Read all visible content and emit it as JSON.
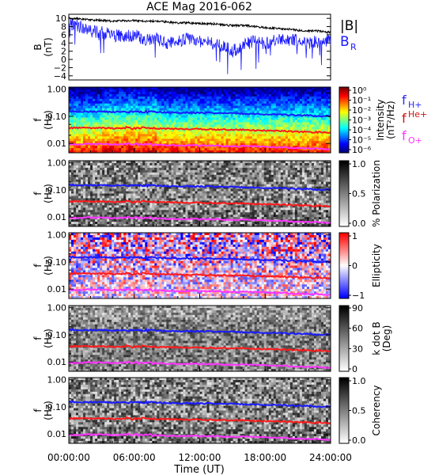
{
  "title": "ACE Mag 2016-062",
  "time_axis": {
    "label": "Time (UT)",
    "ticks": [
      "00:00:00",
      "06:00:00",
      "12:00:00",
      "18:00:00",
      "24:00:00"
    ],
    "range_hours": [
      0,
      24
    ]
  },
  "legend_top": {
    "b_total": "|B|",
    "b_r_main": "B",
    "b_r_sub": "R"
  },
  "legend_freq": [
    {
      "main": "f",
      "sub": "H+",
      "sup": "",
      "color": "#2a2aff"
    },
    {
      "main": "f",
      "sub": "",
      "sup": "He+",
      "color": "#cc1111"
    },
    {
      "main": "f",
      "sub": "O+",
      "sup": "",
      "color": "#ff33ff"
    }
  ],
  "colors": {
    "b_total": "#000000",
    "b_r": "#1a1aff",
    "f_h": "#1a1aff",
    "f_he": "#ff1a1a",
    "f_o": "#ff33ff"
  },
  "chart_data": [
    {
      "type": "line",
      "panel": "B",
      "ylabel_main": "B",
      "ylabel_unit": "(nT)",
      "ylim": [
        -5,
        11
      ],
      "yticks": [
        -4,
        -2,
        0,
        2,
        4,
        6,
        8,
        10
      ],
      "x_hours": [
        0,
        1,
        2,
        3,
        4,
        5,
        6,
        7,
        8,
        9,
        10,
        11,
        12,
        13,
        14,
        15,
        16,
        17,
        18,
        19,
        20,
        21,
        22,
        23,
        24
      ],
      "series": [
        {
          "key": "btotal",
          "values": [
            10.0,
            9.9,
            9.6,
            9.5,
            9.3,
            9.4,
            9.5,
            9.3,
            9.3,
            9.1,
            8.9,
            8.9,
            8.8,
            8.7,
            8.5,
            8.2,
            8.3,
            8.0,
            7.7,
            7.6,
            7.4,
            7.1,
            7.0,
            6.9,
            6.6
          ]
        },
        {
          "key": "br",
          "values": [
            8.5,
            8.0,
            7.0,
            6.5,
            6.0,
            5.5,
            6.0,
            4.5,
            5.0,
            4.0,
            4.5,
            5.0,
            4.5,
            4.0,
            3.5,
            2.0,
            3.5,
            4.5,
            4.0,
            4.5,
            5.0,
            4.5,
            4.0,
            4.5,
            5.0
          ]
        }
      ]
    },
    {
      "type": "heatmap",
      "panel": "intensity",
      "ylabel_main": "f",
      "ylabel_unit": "(Hz)",
      "ylim": [
        0.0045,
        1.2
      ],
      "yscale": "log",
      "yticks": [
        "1.00",
        "0.10",
        "0.01"
      ],
      "colorbar": {
        "label_main": "Intensity",
        "label_unit": "(nT²/Hz)",
        "ticks": [
          "10⁰",
          "10⁻¹",
          "10⁻²",
          "10⁻³",
          "10⁻⁴",
          "10⁻⁵",
          "10⁻⁶"
        ]
      }
    },
    {
      "type": "heatmap",
      "panel": "polarization",
      "ylabel_main": "f",
      "ylabel_unit": "(Hz)",
      "yscale": "log",
      "yticks": [
        "1.00",
        "0.10",
        "0.01"
      ],
      "colorbar": {
        "label_main": "% Polarization",
        "label_unit": "",
        "ticks": [
          "1.0",
          "0.5",
          "0.0"
        ]
      }
    },
    {
      "type": "heatmap",
      "panel": "ellipticity",
      "ylabel_main": "f",
      "ylabel_unit": "(Hz)",
      "yscale": "log",
      "yticks": [
        "1.00",
        "0.10",
        "0.01"
      ],
      "colorbar": {
        "label_main": "Ellipticity",
        "label_unit": "",
        "ticks": [
          "1",
          "0",
          "−1"
        ]
      }
    },
    {
      "type": "heatmap",
      "panel": "kdotb",
      "ylabel_main": "f",
      "ylabel_unit": "(Hz)",
      "yscale": "log",
      "yticks": [
        "1.00",
        "0.10",
        "0.01"
      ],
      "colorbar": {
        "label_main": "k dot B",
        "label_unit": "(Deg)",
        "ticks": [
          "90",
          "60",
          "30",
          "0"
        ]
      }
    },
    {
      "type": "heatmap",
      "panel": "coherency",
      "ylabel_main": "f",
      "ylabel_unit": "(Hz)",
      "yscale": "log",
      "yticks": [
        "1.00",
        "0.10",
        "0.01"
      ],
      "colorbar": {
        "label_main": "Coherency",
        "label_unit": "",
        "ticks": [
          "1.0",
          "0.5",
          "0.0"
        ]
      }
    },
    {
      "type": "line",
      "panel": "gyrofrequencies",
      "x_hours": [
        0,
        2,
        4,
        6,
        8,
        10,
        12,
        14,
        16,
        18,
        20,
        22,
        24
      ],
      "series": [
        {
          "key": "f_h",
          "values": [
            0.152,
            0.15,
            0.146,
            0.145,
            0.142,
            0.138,
            0.135,
            0.13,
            0.126,
            0.118,
            0.112,
            0.106,
            0.1
          ]
        },
        {
          "key": "f_he",
          "values": [
            0.038,
            0.0375,
            0.0365,
            0.0362,
            0.0355,
            0.0345,
            0.0338,
            0.0325,
            0.0315,
            0.0295,
            0.028,
            0.0265,
            0.025
          ]
        },
        {
          "key": "f_o",
          "values": [
            0.0095,
            0.0094,
            0.0091,
            0.0091,
            0.0089,
            0.0086,
            0.0084,
            0.0081,
            0.0079,
            0.0074,
            0.007,
            0.0066,
            0.0062
          ]
        }
      ]
    }
  ]
}
